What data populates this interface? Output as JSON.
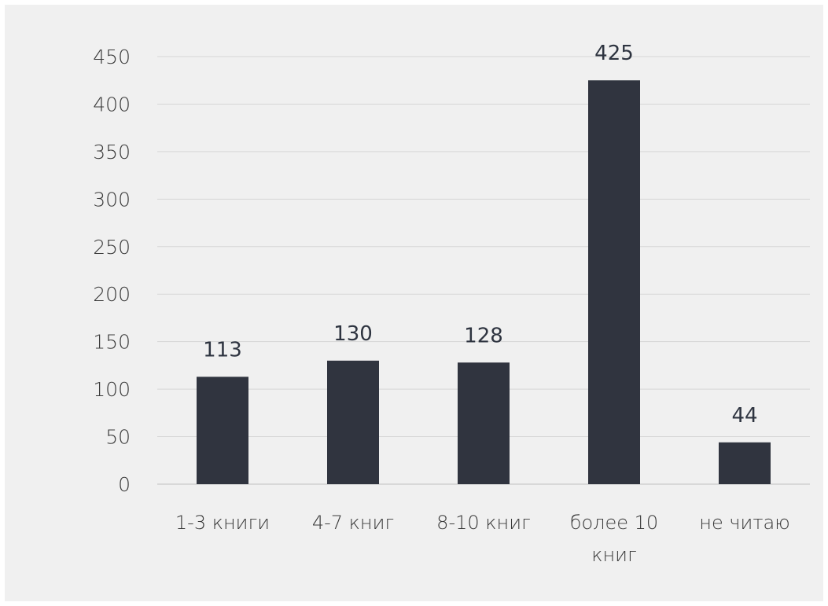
{
  "chart_data": {
    "type": "bar",
    "title": "",
    "xlabel": "",
    "ylabel": "",
    "categories": [
      [
        "1-3 книги"
      ],
      [
        "4-7 книг"
      ],
      [
        "8-10 книг"
      ],
      [
        "более 10",
        "книг"
      ],
      [
        "не читаю"
      ]
    ],
    "values": [
      113,
      130,
      128,
      425,
      44
    ],
    "ylim": [
      0,
      450
    ],
    "yticks": [
      0,
      50,
      100,
      150,
      200,
      250,
      300,
      350,
      400,
      450
    ],
    "grid": true,
    "legend": "none",
    "colors": {
      "bar": "#30343f",
      "background": "#f0f0f0"
    }
  }
}
